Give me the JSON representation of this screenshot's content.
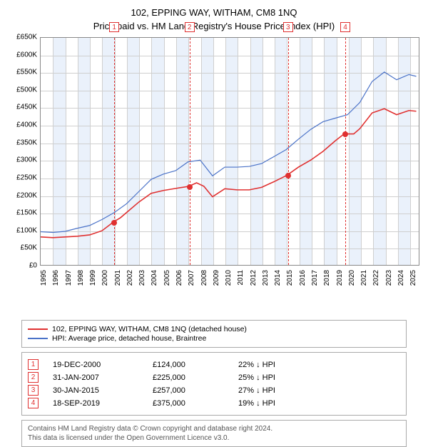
{
  "title1": "102, EPPING WAY, WITHAM, CM8 1NQ",
  "title2": "Price paid vs. HM Land Registry's House Price Index (HPI)",
  "chart": {
    "type": "line",
    "background_color": "#ffffff",
    "grid_color": "#cfcfcf",
    "band_color": "#eaf1fb",
    "border_color": "#888888",
    "xlim": [
      1995,
      2025.8
    ],
    "ylim": [
      0,
      650000
    ],
    "ytick_step": 50000,
    "ytick_labels": [
      "£0",
      "£50K",
      "£100K",
      "£150K",
      "£200K",
      "£250K",
      "£300K",
      "£350K",
      "£400K",
      "£450K",
      "£500K",
      "£550K",
      "£600K",
      "£650K"
    ],
    "xtick_years": [
      1995,
      1996,
      1997,
      1998,
      1999,
      2000,
      2001,
      2002,
      2003,
      2004,
      2005,
      2006,
      2007,
      2008,
      2009,
      2010,
      2011,
      2012,
      2013,
      2014,
      2015,
      2016,
      2017,
      2018,
      2019,
      2020,
      2021,
      2022,
      2023,
      2024,
      2025
    ],
    "series": [
      {
        "name": "property",
        "label": "102, EPPING WAY, WITHAM, CM8 1NQ (detached house)",
        "color": "#e03030",
        "line_width": 1.6,
        "data": [
          [
            1995,
            80000
          ],
          [
            1996,
            78000
          ],
          [
            1997,
            80000
          ],
          [
            1998,
            82000
          ],
          [
            1999,
            86000
          ],
          [
            2000,
            98000
          ],
          [
            2000.97,
            124000
          ],
          [
            2001.5,
            135000
          ],
          [
            2002,
            150000
          ],
          [
            2003,
            180000
          ],
          [
            2004,
            205000
          ],
          [
            2005,
            213000
          ],
          [
            2006,
            219000
          ],
          [
            2007.08,
            225000
          ],
          [
            2007.7,
            235000
          ],
          [
            2008.3,
            225000
          ],
          [
            2009,
            195000
          ],
          [
            2010,
            218000
          ],
          [
            2011,
            215000
          ],
          [
            2012,
            215000
          ],
          [
            2013,
            222000
          ],
          [
            2014,
            238000
          ],
          [
            2015.08,
            257000
          ],
          [
            2016,
            280000
          ],
          [
            2017,
            300000
          ],
          [
            2018,
            325000
          ],
          [
            2019,
            355000
          ],
          [
            2019.72,
            375000
          ],
          [
            2020.5,
            375000
          ],
          [
            2021,
            390000
          ],
          [
            2022,
            435000
          ],
          [
            2023,
            447000
          ],
          [
            2024,
            430000
          ],
          [
            2025,
            442000
          ],
          [
            2025.6,
            440000
          ]
        ]
      },
      {
        "name": "hpi",
        "label": "HPI: Average price, detached house, Braintree",
        "color": "#4a72c8",
        "line_width": 1.2,
        "data": [
          [
            1995,
            95000
          ],
          [
            1996,
            93000
          ],
          [
            1997,
            96000
          ],
          [
            1998,
            105000
          ],
          [
            1999,
            113000
          ],
          [
            2000,
            130000
          ],
          [
            2001,
            150000
          ],
          [
            2002,
            175000
          ],
          [
            2003,
            210000
          ],
          [
            2004,
            245000
          ],
          [
            2005,
            260000
          ],
          [
            2006,
            270000
          ],
          [
            2007,
            295000
          ],
          [
            2008,
            300000
          ],
          [
            2009,
            255000
          ],
          [
            2010,
            280000
          ],
          [
            2011,
            280000
          ],
          [
            2012,
            282000
          ],
          [
            2013,
            290000
          ],
          [
            2014,
            310000
          ],
          [
            2015,
            330000
          ],
          [
            2016,
            360000
          ],
          [
            2017,
            388000
          ],
          [
            2018,
            410000
          ],
          [
            2019,
            420000
          ],
          [
            2020,
            430000
          ],
          [
            2021,
            465000
          ],
          [
            2022,
            525000
          ],
          [
            2023,
            552000
          ],
          [
            2024,
            530000
          ],
          [
            2025,
            545000
          ],
          [
            2025.6,
            540000
          ]
        ]
      }
    ],
    "markers": [
      {
        "n": "1",
        "x": 2000.97,
        "y": 124000
      },
      {
        "n": "2",
        "x": 2007.08,
        "y": 225000
      },
      {
        "n": "3",
        "x": 2015.08,
        "y": 257000
      },
      {
        "n": "4",
        "x": 2019.72,
        "y": 375000
      }
    ],
    "marker_box_color": "#e03030",
    "marker_line_color": "#e03030",
    "dot_color": "#e03030"
  },
  "legend": {
    "rows": [
      {
        "color": "#e03030",
        "label": "102, EPPING WAY, WITHAM, CM8 1NQ (detached house)"
      },
      {
        "color": "#4a72c8",
        "label": "HPI: Average price, detached house, Braintree"
      }
    ]
  },
  "table": {
    "rows": [
      {
        "n": "1",
        "date": "19-DEC-2000",
        "price": "£124,000",
        "delta": "22%",
        "suffix": "HPI"
      },
      {
        "n": "2",
        "date": "31-JAN-2007",
        "price": "£225,000",
        "delta": "25%",
        "suffix": "HPI"
      },
      {
        "n": "3",
        "date": "30-JAN-2015",
        "price": "£257,000",
        "delta": "27%",
        "suffix": "HPI"
      },
      {
        "n": "4",
        "date": "18-SEP-2019",
        "price": "£375,000",
        "delta": "19%",
        "suffix": "HPI"
      }
    ]
  },
  "footer": {
    "line1": "Contains HM Land Registry data © Crown copyright and database right 2024.",
    "line2": "This data is licensed under the Open Government Licence v3.0."
  }
}
